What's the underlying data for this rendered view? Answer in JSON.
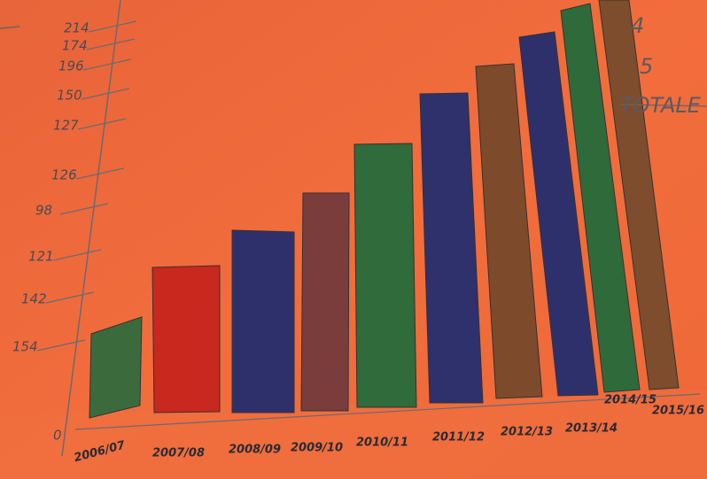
{
  "axis_labels": [
    "0",
    "154",
    "142",
    "121",
    "98",
    "126",
    "127",
    "150",
    "196",
    "174",
    "214"
  ],
  "categories": [
    "2006/07",
    "2007/08",
    "2008/09",
    "2009/10",
    "2010/11",
    "2011/12",
    "2012/13",
    "2013/14",
    "2014/15",
    "2015/16"
  ],
  "legend": [
    "4",
    "5",
    "TOTALE"
  ]
}
